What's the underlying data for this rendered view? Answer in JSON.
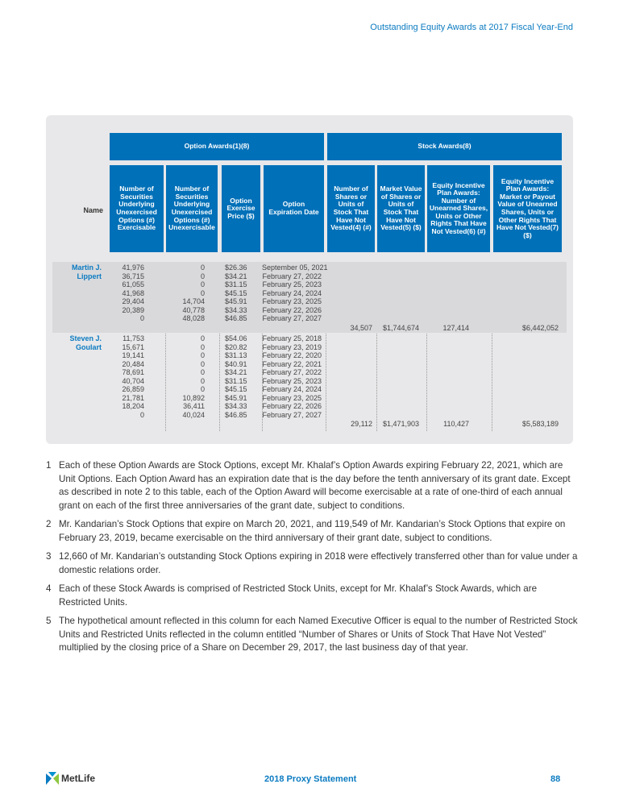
{
  "page_header": "Outstanding Equity Awards at 2017 Fiscal Year-End",
  "table": {
    "group_headers": [
      "Option Awards(1)(8)",
      "Stock Awards(8)"
    ],
    "name_header": "Name",
    "columns": [
      "Number of Securities Underlying Unexercised Options (#) Exercisable",
      "Number of Securities Underlying Unexercised Options (#) Unexercisable",
      "Option Exercise Price ($)",
      "Option Expiration Date",
      "Number of Shares or Units of Stock That Have Not Vested(4) (#)",
      "Market Value of Shares or Units of Stock That Have Not Vested(5) ($)",
      "Equity Incentive Plan Awards: Number of Unearned Shares, Units or Other Rights That Have Not Vested(6) (#)",
      "Equity Incentive Plan Awards: Market or Payout Value of Unearned Shares, Units or Other Rights That Have Not Vested(7) ($)"
    ],
    "rows": [
      {
        "name": "Martin J.\nLippert",
        "exercisable": "41,976\n36,715\n61,055\n41,968\n29,404\n20,389\n0",
        "unexercisable": "0\n0\n0\n0\n14,704\n40,778\n48,028",
        "price": "$26.36\n$34.21\n$31.15\n$45.15\n$45.91\n$34.33\n$46.85",
        "expiration": "September 05, 2021\nFebruary 27, 2022\nFebruary 25, 2023\nFebruary 24, 2024\nFebruary 23, 2025\nFebruary 22, 2026\nFebruary 27, 2027",
        "shares_not_vested": "34,507",
        "market_value": "$1,744,674",
        "eip_units": "127,414",
        "eip_value": "$6,442,052"
      },
      {
        "name": "Steven J.\nGoulart",
        "exercisable": "11,753\n15,671\n19,141\n20,484\n78,691\n40,704\n26,859\n21,781\n18,204\n0",
        "unexercisable": "0\n0\n0\n0\n0\n0\n0\n10,892\n36,411\n40,024",
        "price": "$54.06\n$20.82\n$31.13\n$40.91\n$34.21\n$31.15\n$45.15\n$45.91\n$34.33\n$46.85",
        "expiration": "February 25, 2018\nFebruary 23, 2019\nFebruary 22, 2020\nFebruary 22, 2021\nFebruary 27, 2022\nFebruary 25, 2023\nFebruary 24, 2024\nFebruary 23, 2025\nFebruary 22, 2026\nFebruary 27, 2027",
        "shares_not_vested": "29,112",
        "market_value": "$1,471,903",
        "eip_units": "110,427",
        "eip_value": "$5,583,189"
      }
    ]
  },
  "footnotes": [
    {
      "num": "1",
      "text": "Each of these Option Awards are Stock Options, except Mr. Khalaf’s Option Awards expiring February 22, 2021, which are Unit Options. Each Option Award has an expiration date that is the day before the tenth anniversary of its grant date. Except as described in note 2 to this table, each of the Option Award will become exercisable at a rate of one-third of each annual grant on each of the first three anniversaries of the grant date, subject to conditions."
    },
    {
      "num": "2",
      "text": "Mr. Kandarian’s Stock Options that expire on March 20, 2021, and 119,549 of Mr. Kandarian’s Stock Options that expire on February 23, 2019, became exercisable on the third anniversary of their grant date, subject to conditions."
    },
    {
      "num": "3",
      "text": "12,660 of Mr. Kandarian’s outstanding Stock Options expiring in 2018 were effectively transferred other than for value under a domestic relations order."
    },
    {
      "num": "4",
      "text": "Each of these Stock Awards is comprised of Restricted Stock Units, except for Mr. Khalaf’s Stock Awards, which are Restricted Units."
    },
    {
      "num": "5",
      "text": "The hypothetical amount reflected in this column for each Named Executive Officer is equal to the number of Restricted Stock Units and Restricted Units reflected in the column entitled “Number of Shares or Units of Stock That Have Not Vested” multiplied by the closing price of a Share on December 29, 2017, the last business day of that year."
    }
  ],
  "footer": {
    "logo": "MetLife",
    "title": "2018 Proxy Statement",
    "page": "88"
  },
  "colors": {
    "accent": "#0070b8",
    "panel": "#e8e8ea"
  }
}
